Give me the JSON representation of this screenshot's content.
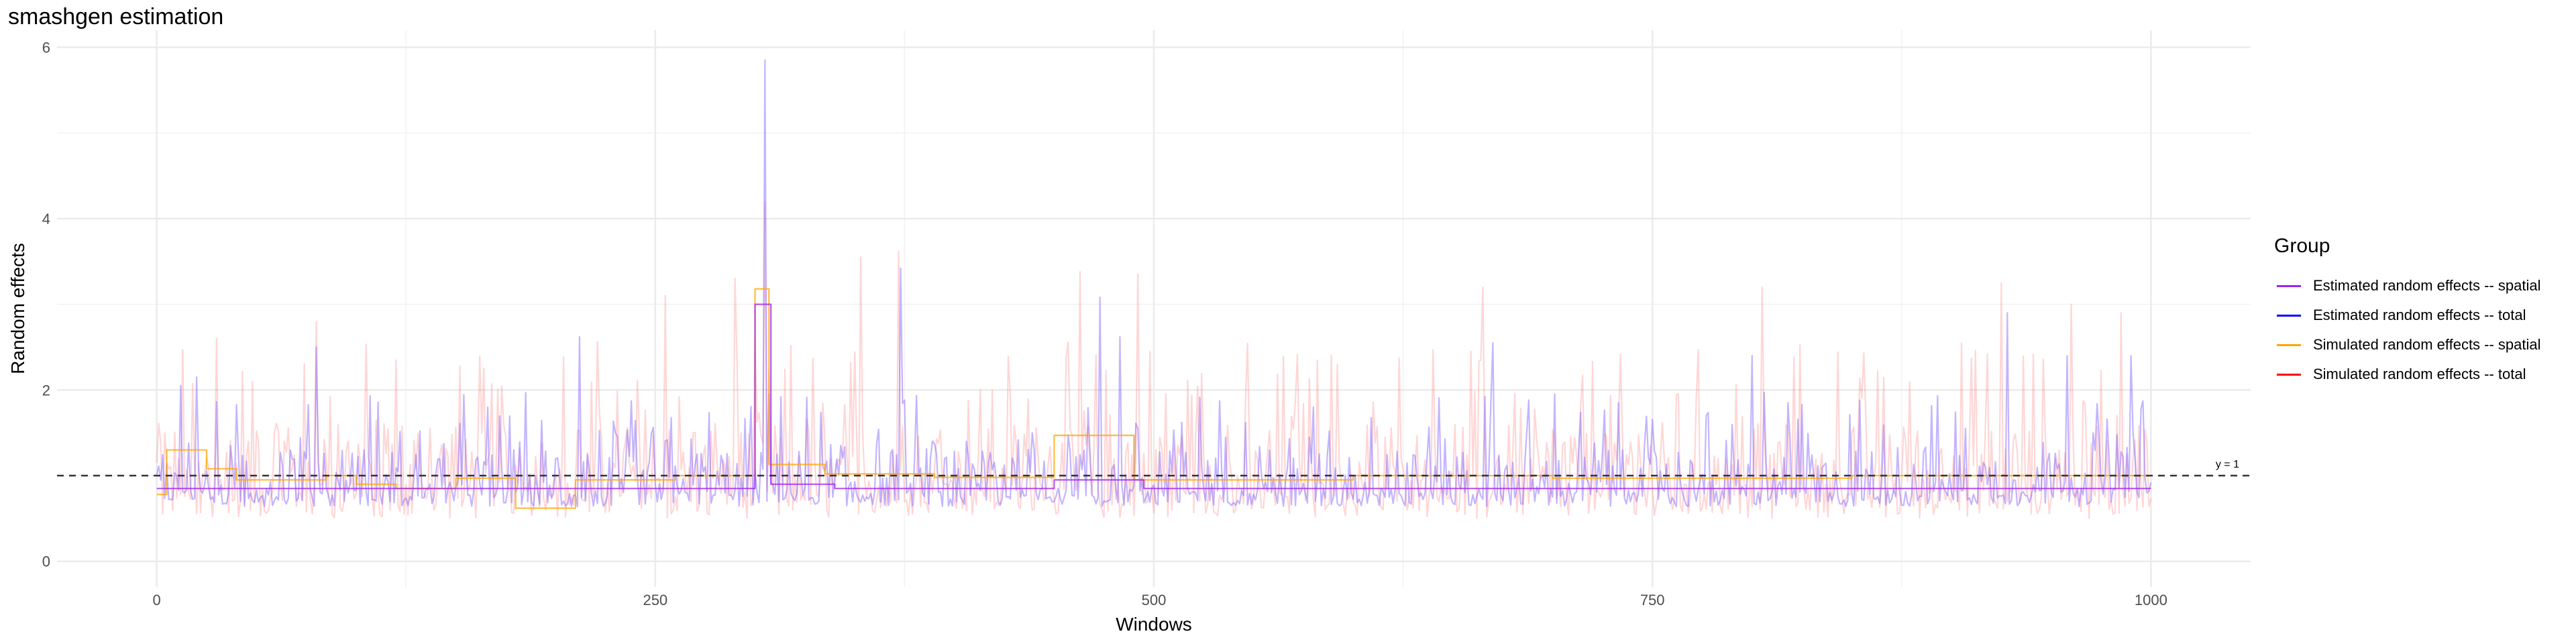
{
  "title": "smashgen estimation",
  "chart_data": {
    "type": "line",
    "title": "smashgen estimation",
    "xlabel": "Windows",
    "ylabel": "Random effects",
    "xlim": [
      -50,
      1050
    ],
    "ylim": [
      -0.3,
      6.2
    ],
    "x_ticks": [
      0,
      250,
      500,
      750,
      1000
    ],
    "x_tick_labels": [
      "0",
      "250",
      "500",
      "750",
      "1000"
    ],
    "y_ticks": [
      0,
      2,
      4,
      6
    ],
    "y_tick_labels": [
      "0",
      "2",
      "4",
      "6"
    ],
    "grid": true,
    "legend_position": "right",
    "legend_title": "Group",
    "reference_line": {
      "y": 1,
      "label": "y = 1",
      "style": "dashed"
    },
    "series": [
      {
        "name": "Estimated random effects -- spatial",
        "color": "#A020F0",
        "kind": "piecewise_constant",
        "segments": [
          [
            0,
            300,
            0.85
          ],
          [
            300,
            308,
            3.0
          ],
          [
            308,
            340,
            0.9
          ],
          [
            340,
            450,
            0.85
          ],
          [
            450,
            495,
            0.95
          ],
          [
            495,
            1000,
            0.85
          ]
        ]
      },
      {
        "name": "Estimated random effects -- total",
        "color": "#0000FF",
        "kind": "noisy",
        "baseline": 0.85,
        "peaks": [
          [
            305,
            5.85
          ],
          [
            373,
            3.42
          ],
          [
            928,
            2.9
          ],
          [
            212,
            2.62
          ],
          [
            80,
            2.5
          ],
          [
            473,
            3.08
          ],
          [
            483,
            2.62
          ],
          [
            670,
            2.55
          ],
          [
            958,
            2.4
          ],
          [
            990,
            2.4
          ],
          [
            12,
            2.05
          ],
          [
            20,
            2.15
          ],
          [
            800,
            2.4
          ]
        ]
      },
      {
        "name": "Simulated random effects -- spatial",
        "color": "#FFA500",
        "kind": "piecewise_constant",
        "segments": [
          [
            0,
            5,
            0.78
          ],
          [
            5,
            25,
            1.3
          ],
          [
            25,
            40,
            1.08
          ],
          [
            40,
            85,
            0.95
          ],
          [
            85,
            100,
            1.0
          ],
          [
            100,
            120,
            0.9
          ],
          [
            120,
            150,
            0.85
          ],
          [
            150,
            180,
            0.97
          ],
          [
            180,
            210,
            0.62
          ],
          [
            210,
            260,
            0.95
          ],
          [
            260,
            300,
            1.0
          ],
          [
            300,
            307,
            3.18
          ],
          [
            307,
            335,
            1.13
          ],
          [
            335,
            390,
            1.02
          ],
          [
            390,
            450,
            0.98
          ],
          [
            450,
            490,
            1.47
          ],
          [
            490,
            600,
            0.95
          ],
          [
            600,
            700,
            1.0
          ],
          [
            700,
            850,
            0.97
          ],
          [
            850,
            1000,
            1.0
          ]
        ]
      },
      {
        "name": "Simulated random effects -- total",
        "color": "#FF0000",
        "kind": "noisy",
        "baseline": 0.95,
        "peaks": [
          [
            305,
            4.2
          ],
          [
            372,
            3.62
          ],
          [
            290,
            3.3
          ],
          [
            353,
            3.55
          ],
          [
            463,
            3.38
          ],
          [
            492,
            3.35
          ],
          [
            805,
            3.2
          ],
          [
            925,
            3.25
          ],
          [
            960,
            3.0
          ],
          [
            255,
            3.1
          ],
          [
            665,
            3.2
          ],
          [
            985,
            2.9
          ],
          [
            80,
            2.8
          ],
          [
            30,
            2.6
          ]
        ]
      }
    ]
  },
  "legend": {
    "title": "Group",
    "items": [
      {
        "label": "Estimated random effects -- spatial",
        "color": "#A020F0"
      },
      {
        "label": "Estimated random effects -- total",
        "color": "#0000FF"
      },
      {
        "label": "Simulated random effects -- spatial",
        "color": "#FFA500"
      },
      {
        "label": "Simulated random effects -- total",
        "color": "#FF0000"
      }
    ]
  }
}
